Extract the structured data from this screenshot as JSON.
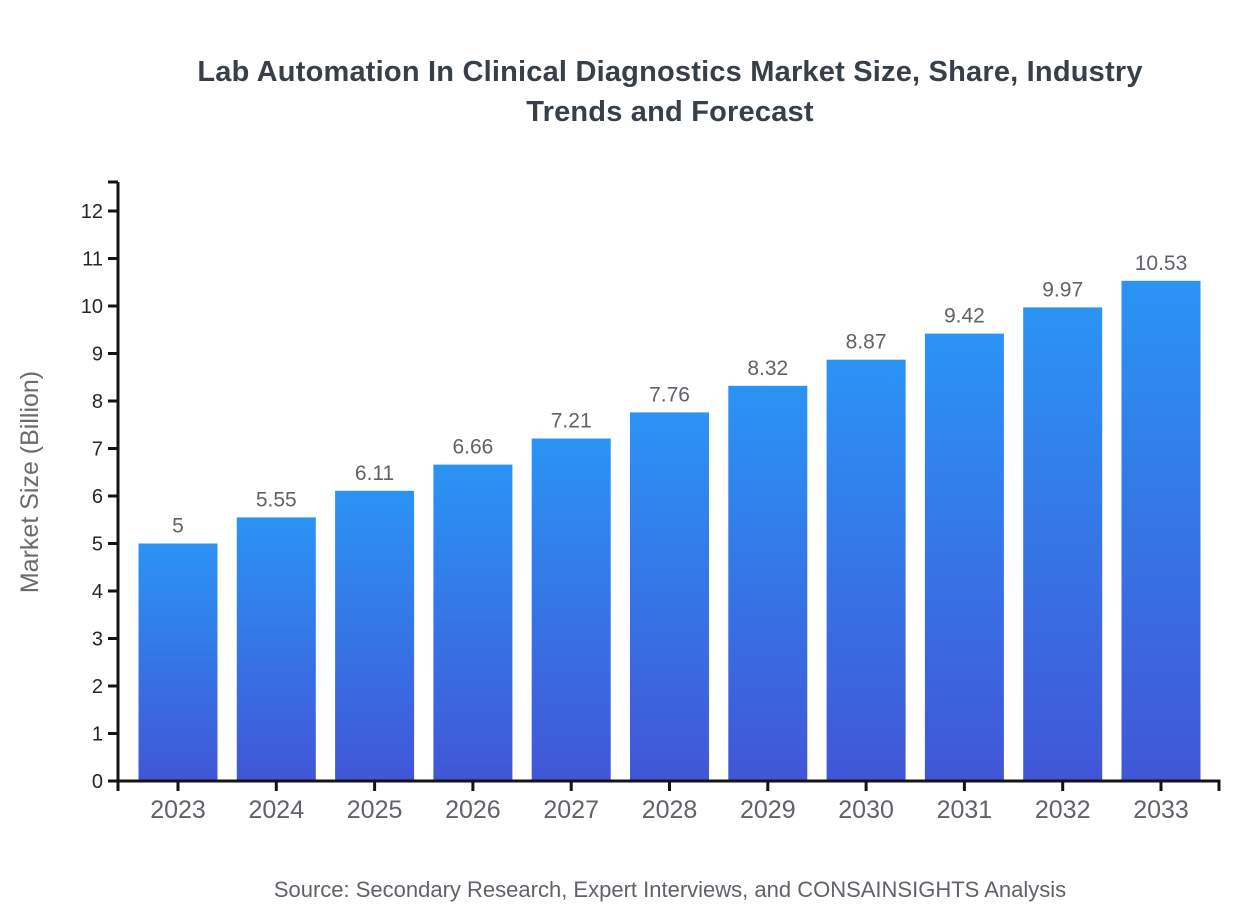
{
  "page": {
    "background_color": "#ffffff"
  },
  "chart_data": {
    "type": "bar",
    "title": "Lab Automation In Clinical Diagnostics Market Size, Share, Industry Trends and Forecast",
    "source_note": "Source: Secondary Research, Expert Interviews, and CONSAINSIGHTS Analysis",
    "categories": [
      "2023",
      "2024",
      "2025",
      "2026",
      "2027",
      "2028",
      "2029",
      "2030",
      "2031",
      "2032",
      "2033"
    ],
    "values": [
      5,
      5.55,
      6.11,
      6.66,
      7.21,
      7.76,
      8.32,
      8.87,
      9.42,
      9.97,
      10.53
    ],
    "value_labels": [
      "5",
      "5.55",
      "6.11",
      "6.66",
      "7.21",
      "7.76",
      "8.32",
      "8.87",
      "9.42",
      "9.97",
      "10.53"
    ],
    "xlabel": "",
    "ylabel": "Market Size (Billion)",
    "ylim": [
      0,
      12
    ],
    "ytick_step": 1,
    "ytick_labels": [
      "0",
      "1",
      "2",
      "3",
      "4",
      "5",
      "6",
      "7",
      "8",
      "9",
      "10",
      "11",
      "12"
    ],
    "grid": false,
    "legend_position": "none",
    "colors": {
      "bar_gradient_top": "#2B93F5",
      "bar_gradient_bottom": "#4156D7",
      "axis": "#141414",
      "title_text": "#373F48",
      "ytick_label": "#262626",
      "category_label": "#5F6368",
      "value_label": "#5F6368",
      "axis_title": "#6B6B6B",
      "source_text": "#5F6368"
    }
  }
}
